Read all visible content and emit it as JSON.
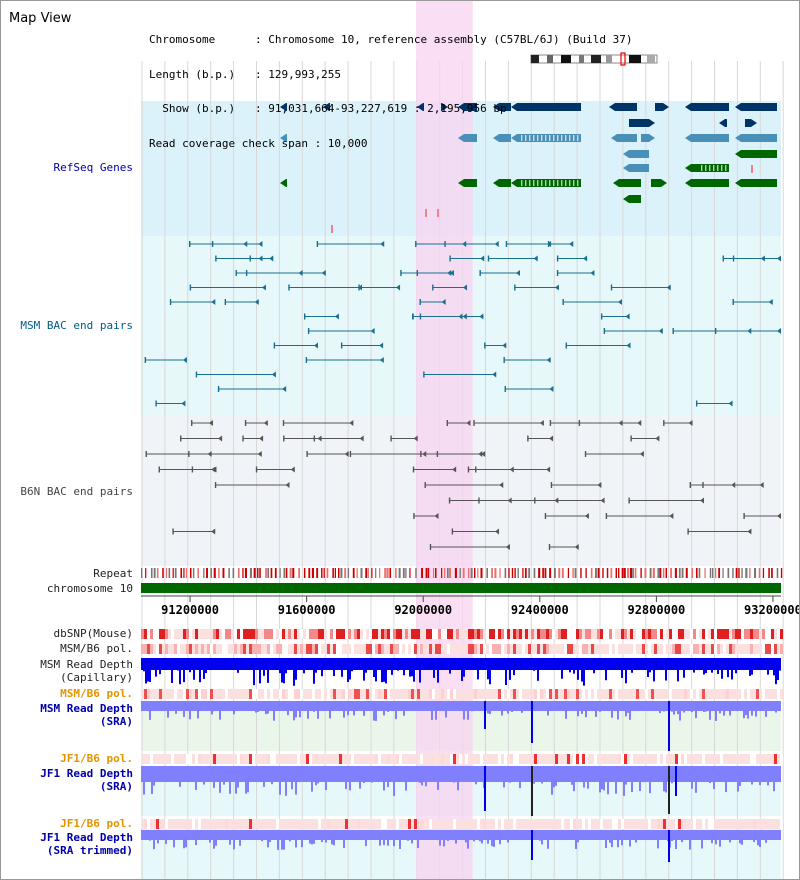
{
  "view": {
    "title": "Map View",
    "info_lines": [
      "Chromosome      : Chromosome 10, reference assembly (C57BL/6J) (Build 37)",
      "Length (b.p.)   : 129,993,255",
      "  Show (b.p.)   : 91,031,664-93,227,619 : 2,195,956 bp",
      "Read coverage check span : 10,000"
    ]
  },
  "region": {
    "start": 91031664,
    "end": 93227619,
    "highlight_start": 91975000,
    "highlight_end": 92170000
  },
  "axis": {
    "ticks": [
      91200000,
      91600000,
      92000000,
      92400000,
      92800000,
      93200000
    ]
  },
  "tracks": {
    "refseq_genes": "RefSeq Genes",
    "msm_bac": "MSM BAC end pairs",
    "b6n_bac": "B6N BAC end pairs",
    "repeat": "Repeat",
    "chromosome": "chromosome 10",
    "dbsnp": "dbSNP(Mouse)",
    "msm_b6_pol": "MSM/B6 pol.",
    "msm_depth_cap_1": "MSM Read Depth",
    "msm_depth_cap_2": "(Capillary)",
    "msm_b6_pol_2": "MSM/B6 pol.",
    "msm_depth_sra_1": "MSM Read Depth",
    "msm_depth_sra_2": "(SRA)",
    "jf1_b6_pol": "JF1/B6 pol.",
    "jf1_depth_sra_1": "JF1 Read Depth",
    "jf1_depth_sra_2": "(SRA)",
    "jf1_b6_pol_2": "JF1/B6 pol.",
    "jf1_depth_trim_1": "JF1 Read Depth",
    "jf1_depth_trim_2": "(SRA trimmed)"
  },
  "colors": {
    "refseq_bg": "#dcf2fb",
    "msm_bg": "#e6f8fa",
    "b6n_bg": "#f0f4f8",
    "highlight": "#f8d4f0",
    "gene_dark": "#003366",
    "gene_mid": "#4a8fb8",
    "gene_green": "#006600",
    "bac_teal": "#1a6e8e",
    "bac_gray": "#555555",
    "chrom_green": "#006600",
    "depth_dark": "#0000ee",
    "depth_light": "#8080ff"
  }
}
